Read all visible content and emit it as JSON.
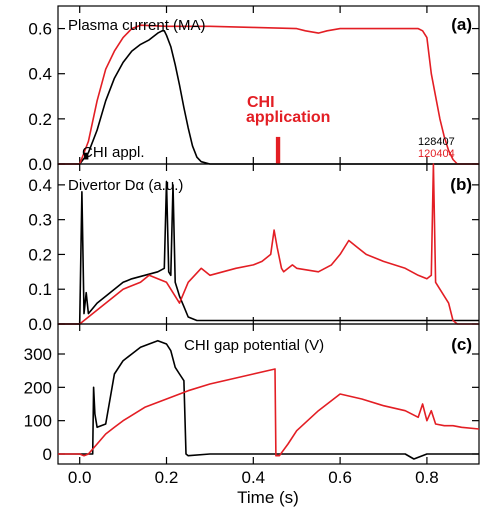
{
  "chart_data": {
    "type": "line",
    "xlabel": "Time (s)",
    "xlim": [
      -0.05,
      0.92
    ],
    "x_ticks": [
      0.0,
      0.2,
      0.4,
      0.6,
      0.8
    ],
    "x_tick_labels": [
      "0.0",
      "0.2",
      "0.4",
      "0.6",
      "0.8"
    ],
    "colors": {
      "black": "#000000",
      "red": "#e31e24"
    },
    "panels": [
      {
        "letter": "(a)",
        "title": "Plasma current (MA)",
        "ylim": [
          0.0,
          0.7
        ],
        "y_ticks": [
          0.0,
          0.2,
          0.4,
          0.6
        ],
        "y_tick_labels": [
          "0.0",
          "0.2",
          "0.4",
          "0.6"
        ],
        "annotations": {
          "chi_appl": "CHI appl.",
          "chi_application_line1": "CHI",
          "chi_application_line2": "application",
          "shot_black": "128407",
          "shot_red": "120404"
        },
        "series": [
          {
            "color": "black",
            "x": [
              -0.05,
              0.0,
              0.02,
              0.04,
              0.06,
              0.08,
              0.1,
              0.12,
              0.14,
              0.16,
              0.18,
              0.19,
              0.195,
              0.2,
              0.21,
              0.22,
              0.23,
              0.24,
              0.25,
              0.26,
              0.27,
              0.28,
              0.3,
              0.4,
              0.5,
              0.6,
              0.7,
              0.8,
              0.92
            ],
            "y": [
              0.0,
              0.0,
              0.05,
              0.15,
              0.28,
              0.38,
              0.45,
              0.5,
              0.53,
              0.55,
              0.58,
              0.59,
              0.59,
              0.57,
              0.52,
              0.44,
              0.35,
              0.25,
              0.16,
              0.08,
              0.03,
              0.01,
              0.0,
              0.0,
              0.0,
              0.0,
              0.0,
              0.0,
              0.0
            ]
          },
          {
            "color": "red",
            "x": [
              -0.05,
              0.0,
              0.02,
              0.04,
              0.06,
              0.08,
              0.1,
              0.12,
              0.14,
              0.2,
              0.3,
              0.4,
              0.5,
              0.52,
              0.55,
              0.57,
              0.6,
              0.65,
              0.7,
              0.78,
              0.79,
              0.8,
              0.81,
              0.82,
              0.83,
              0.84,
              0.85,
              0.86,
              0.87,
              0.92
            ],
            "y": [
              0.0,
              0.0,
              0.1,
              0.28,
              0.42,
              0.5,
              0.56,
              0.6,
              0.615,
              0.61,
              0.61,
              0.605,
              0.6,
              0.59,
              0.58,
              0.59,
              0.6,
              0.6,
              0.6,
              0.6,
              0.59,
              0.56,
              0.4,
              0.3,
              0.2,
              0.12,
              0.06,
              0.02,
              0.0,
              0.0
            ]
          }
        ],
        "markers": [
          {
            "color": "red",
            "x0": 0.452,
            "x1": 0.462,
            "y0": 0.0,
            "y1": 0.12
          },
          {
            "color": "black",
            "x0": 0.01,
            "x1": 0.02,
            "y0": 0.02,
            "y1": 0.05
          }
        ]
      },
      {
        "letter": "(b)",
        "title": "Divertor Dα (a.u.)",
        "ylim": [
          0.0,
          0.46
        ],
        "y_ticks": [
          0.0,
          0.1,
          0.2,
          0.3,
          0.4
        ],
        "y_tick_labels": [
          "0.0",
          "0.1",
          "0.2",
          "0.3",
          "0.4"
        ],
        "series": [
          {
            "color": "black",
            "x": [
              -0.05,
              0.0,
              0.005,
              0.01,
              0.015,
              0.02,
              0.04,
              0.06,
              0.08,
              0.1,
              0.12,
              0.15,
              0.18,
              0.195,
              0.2,
              0.205,
              0.21,
              0.215,
              0.22,
              0.225,
              0.23,
              0.24,
              0.25,
              0.27,
              0.3,
              0.4,
              0.6,
              0.8,
              0.92
            ],
            "y": [
              0.0,
              0.0,
              0.38,
              0.03,
              0.09,
              0.03,
              0.06,
              0.08,
              0.1,
              0.12,
              0.13,
              0.14,
              0.15,
              0.16,
              0.41,
              0.15,
              0.14,
              0.4,
              0.12,
              0.1,
              0.08,
              0.05,
              0.02,
              0.01,
              0.01,
              0.01,
              0.01,
              0.01,
              0.01
            ]
          },
          {
            "color": "red",
            "x": [
              -0.05,
              0.0,
              0.05,
              0.08,
              0.1,
              0.14,
              0.16,
              0.2,
              0.23,
              0.25,
              0.28,
              0.3,
              0.33,
              0.36,
              0.4,
              0.42,
              0.44,
              0.448,
              0.455,
              0.465,
              0.47,
              0.49,
              0.5,
              0.55,
              0.58,
              0.6,
              0.62,
              0.64,
              0.66,
              0.7,
              0.75,
              0.78,
              0.8,
              0.81,
              0.815,
              0.82,
              0.83,
              0.85,
              0.86,
              0.87,
              0.92
            ],
            "y": [
              0.0,
              0.0,
              0.05,
              0.08,
              0.1,
              0.12,
              0.14,
              0.12,
              0.06,
              0.12,
              0.16,
              0.14,
              0.15,
              0.16,
              0.17,
              0.18,
              0.2,
              0.27,
              0.22,
              0.16,
              0.15,
              0.17,
              0.16,
              0.15,
              0.17,
              0.2,
              0.24,
              0.22,
              0.2,
              0.18,
              0.16,
              0.14,
              0.13,
              0.14,
              0.46,
              0.12,
              0.1,
              0.06,
              0.01,
              0.0,
              0.0
            ]
          }
        ]
      },
      {
        "letter": "(c)",
        "title": "CHI gap potential (V)",
        "ylim": [
          -30,
          390
        ],
        "y_ticks": [
          0,
          100,
          200,
          300
        ],
        "y_tick_labels": [
          "0",
          "100",
          "200",
          "300"
        ],
        "series": [
          {
            "color": "black",
            "x": [
              -0.05,
              0.0,
              0.03,
              0.032,
              0.035,
              0.04,
              0.06,
              0.08,
              0.1,
              0.12,
              0.14,
              0.16,
              0.18,
              0.2,
              0.21,
              0.22,
              0.23,
              0.24,
              0.245,
              0.25,
              0.3,
              0.45,
              0.6,
              0.75,
              0.77,
              0.8,
              0.92
            ],
            "y": [
              0,
              0,
              0,
              200,
              120,
              80,
              90,
              240,
              280,
              300,
              320,
              330,
              340,
              330,
              310,
              260,
              240,
              220,
              0,
              -5,
              0,
              0,
              0,
              0,
              -15,
              0,
              0
            ]
          },
          {
            "color": "red",
            "x": [
              -0.05,
              0.0,
              0.01,
              0.02,
              0.04,
              0.06,
              0.08,
              0.1,
              0.15,
              0.2,
              0.25,
              0.3,
              0.35,
              0.4,
              0.45,
              0.452,
              0.46,
              0.48,
              0.5,
              0.55,
              0.6,
              0.65,
              0.7,
              0.75,
              0.78,
              0.79,
              0.8,
              0.81,
              0.82,
              0.84,
              0.86,
              0.88,
              0.92
            ],
            "y": [
              0,
              0,
              -5,
              0,
              30,
              60,
              80,
              100,
              140,
              165,
              190,
              210,
              225,
              240,
              255,
              -5,
              -5,
              30,
              70,
              130,
              180,
              165,
              145,
              130,
              110,
              150,
              100,
              130,
              90,
              85,
              85,
              80,
              75
            ]
          }
        ]
      }
    ]
  }
}
